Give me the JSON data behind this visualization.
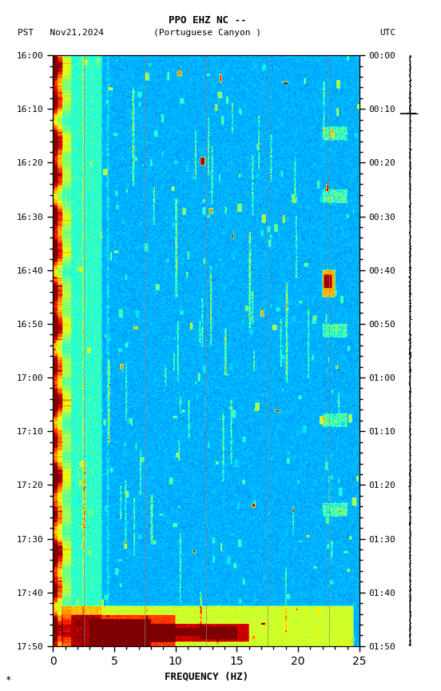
{
  "title_line1": "PPO EHZ NC --",
  "title_line2_left": "PST   Nov21,2024",
  "title_line2_center": "(Portuguese Canyon )",
  "title_line2_right": "UTC",
  "xlabel": "FREQUENCY (HZ)",
  "freq_min": 0,
  "freq_max": 25,
  "pst_ticks": [
    "16:00",
    "16:10",
    "16:20",
    "16:30",
    "16:40",
    "16:50",
    "17:00",
    "17:10",
    "17:20",
    "17:30",
    "17:40",
    "17:50"
  ],
  "utc_ticks": [
    "00:00",
    "00:10",
    "00:20",
    "00:30",
    "00:40",
    "00:50",
    "01:00",
    "01:10",
    "01:20",
    "01:30",
    "01:40",
    "01:50"
  ],
  "grid_freqs": [
    2.5,
    7.5,
    12.5,
    17.5,
    22.5
  ],
  "bg_color": "#ffffff",
  "figsize": [
    5.52,
    8.64
  ],
  "dpi": 100,
  "vmin": 0.0,
  "vmax": 6.0,
  "base_level": 1.8,
  "seed": 42
}
